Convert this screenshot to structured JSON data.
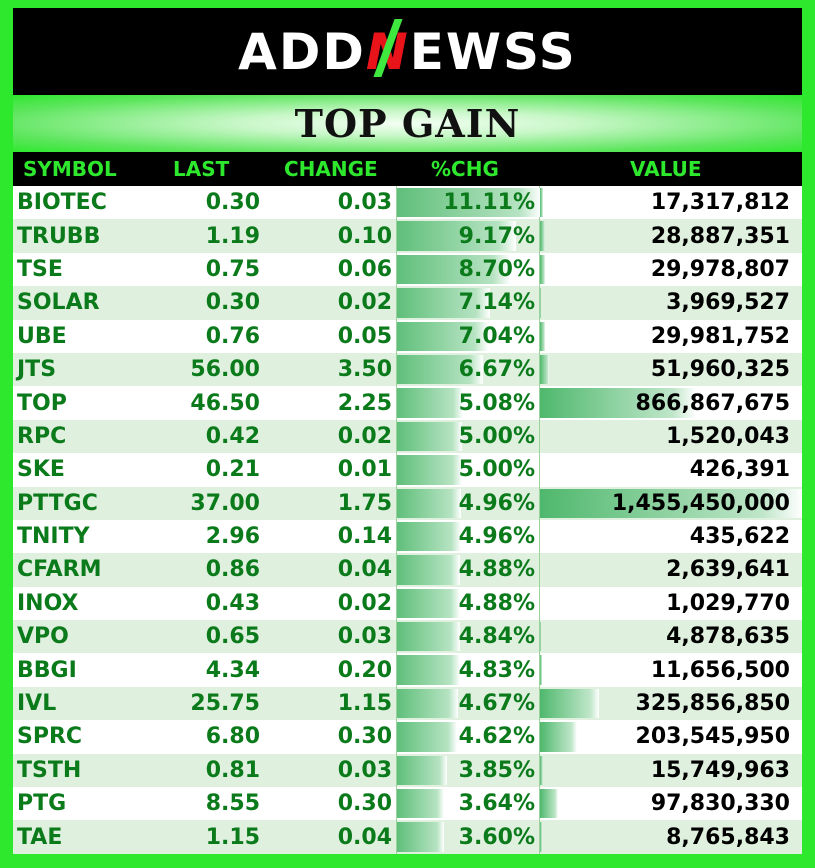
{
  "logo": {
    "part1": "ADD",
    "part2": "N",
    "part3": "EWSS"
  },
  "title": "TOP GAIN",
  "headers": {
    "symbol": "SYMBOL",
    "last": "LAST",
    "change": "CHANGE",
    "pct": "%CHG",
    "value": "VALUE"
  },
  "rows": [
    {
      "symbol": "BIOTEC",
      "last": "0.30",
      "change": "0.03",
      "pct": "11.11%",
      "value": "17,317,812",
      "pct_num": 11.11,
      "value_num": 17317812
    },
    {
      "symbol": "TRUBB",
      "last": "1.19",
      "change": "0.10",
      "pct": "9.17%",
      "value": "28,887,351",
      "pct_num": 9.17,
      "value_num": 28887351
    },
    {
      "symbol": "TSE",
      "last": "0.75",
      "change": "0.06",
      "pct": "8.70%",
      "value": "29,978,807",
      "pct_num": 8.7,
      "value_num": 29978807
    },
    {
      "symbol": "SOLAR",
      "last": "0.30",
      "change": "0.02",
      "pct": "7.14%",
      "value": "3,969,527",
      "pct_num": 7.14,
      "value_num": 3969527
    },
    {
      "symbol": "UBE",
      "last": "0.76",
      "change": "0.05",
      "pct": "7.04%",
      "value": "29,981,752",
      "pct_num": 7.04,
      "value_num": 29981752
    },
    {
      "symbol": "JTS",
      "last": "56.00",
      "change": "3.50",
      "pct": "6.67%",
      "value": "51,960,325",
      "pct_num": 6.67,
      "value_num": 51960325
    },
    {
      "symbol": "TOP",
      "last": "46.50",
      "change": "2.25",
      "pct": "5.08%",
      "value": "866,867,675",
      "pct_num": 5.08,
      "value_num": 866867675
    },
    {
      "symbol": "RPC",
      "last": "0.42",
      "change": "0.02",
      "pct": "5.00%",
      "value": "1,520,043",
      "pct_num": 5.0,
      "value_num": 1520043
    },
    {
      "symbol": "SKE",
      "last": "0.21",
      "change": "0.01",
      "pct": "5.00%",
      "value": "426,391",
      "pct_num": 5.0,
      "value_num": 426391
    },
    {
      "symbol": "PTTGC",
      "last": "37.00",
      "change": "1.75",
      "pct": "4.96%",
      "value": "1,455,450,000",
      "pct_num": 4.96,
      "value_num": 1455450000
    },
    {
      "symbol": "TNITY",
      "last": "2.96",
      "change": "0.14",
      "pct": "4.96%",
      "value": "435,622",
      "pct_num": 4.96,
      "value_num": 435622
    },
    {
      "symbol": "CFARM",
      "last": "0.86",
      "change": "0.04",
      "pct": "4.88%",
      "value": "2,639,641",
      "pct_num": 4.88,
      "value_num": 2639641
    },
    {
      "symbol": "INOX",
      "last": "0.43",
      "change": "0.02",
      "pct": "4.88%",
      "value": "1,029,770",
      "pct_num": 4.88,
      "value_num": 1029770
    },
    {
      "symbol": "VPO",
      "last": "0.65",
      "change": "0.03",
      "pct": "4.84%",
      "value": "4,878,635",
      "pct_num": 4.84,
      "value_num": 4878635
    },
    {
      "symbol": "BBGI",
      "last": "4.34",
      "change": "0.20",
      "pct": "4.83%",
      "value": "11,656,500",
      "pct_num": 4.83,
      "value_num": 11656500
    },
    {
      "symbol": "IVL",
      "last": "25.75",
      "change": "1.15",
      "pct": "4.67%",
      "value": "325,856,850",
      "pct_num": 4.67,
      "value_num": 325856850
    },
    {
      "symbol": "SPRC",
      "last": "6.80",
      "change": "0.30",
      "pct": "4.62%",
      "value": "203,545,950",
      "pct_num": 4.62,
      "value_num": 203545950
    },
    {
      "symbol": "TSTH",
      "last": "0.81",
      "change": "0.03",
      "pct": "3.85%",
      "value": "15,749,963",
      "pct_num": 3.85,
      "value_num": 15749963
    },
    {
      "symbol": "PTG",
      "last": "8.55",
      "change": "0.30",
      "pct": "3.64%",
      "value": "97,830,330",
      "pct_num": 3.64,
      "value_num": 97830330
    },
    {
      "symbol": "TAE",
      "last": "1.15",
      "change": "0.04",
      "pct": "3.60%",
      "value": "8,765,843",
      "pct_num": 3.6,
      "value_num": 8765843
    }
  ]
}
